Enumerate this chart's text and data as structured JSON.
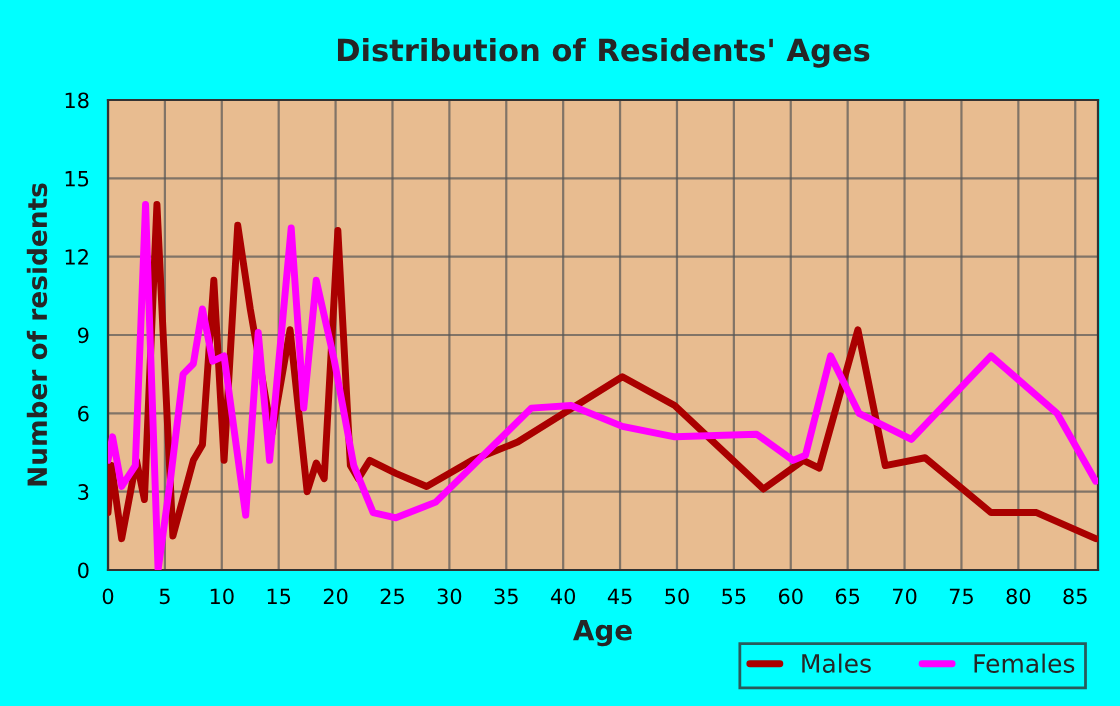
{
  "chart_data": {
    "type": "line",
    "title": "Distribution of Residents' Ages",
    "xlabel": "Age",
    "ylabel": "Number of residents",
    "xlim": [
      0,
      87
    ],
    "xticks": [
      0,
      5,
      10,
      15,
      20,
      25,
      30,
      35,
      40,
      45,
      50,
      55,
      60,
      65,
      70,
      75,
      80,
      85
    ],
    "ylim": [
      0,
      18
    ],
    "yticks": [
      0,
      3,
      6,
      9,
      12,
      15,
      18
    ],
    "grid": true,
    "legend": "bottom right",
    "line_style": "solid",
    "series": [
      {
        "name": "Males",
        "color": "#aa0000",
        "x": [
          0,
          0.3,
          1.2,
          2.5,
          3.2,
          4.3,
          5.7,
          7.5,
          8.3,
          9.3,
          10.2,
          11.4,
          12.5,
          14.4,
          16.0,
          17.5,
          18.3,
          19.0,
          20.2,
          21.3,
          22.0,
          23.0,
          25.3,
          28.0,
          32.0,
          36.0,
          45.2,
          49.8,
          57.6,
          61.1,
          62.5,
          65.9,
          68.3,
          71.8,
          77.6,
          81.6,
          86.8
        ],
        "values": [
          2.2,
          4.0,
          1.2,
          4.2,
          2.7,
          14.0,
          1.3,
          4.2,
          4.8,
          11.1,
          4.2,
          13.2,
          10.0,
          5.2,
          9.2,
          3.0,
          4.1,
          3.5,
          13.0,
          4.0,
          3.5,
          4.2,
          3.7,
          3.2,
          4.2,
          4.9,
          7.4,
          6.3,
          3.1,
          4.2,
          3.9,
          9.2,
          4.0,
          4.3,
          2.2,
          2.2,
          1.2
        ]
      },
      {
        "name": "Females",
        "color": "#ff00ff",
        "x": [
          0,
          0.4,
          1.2,
          2.4,
          3.3,
          4.4,
          5.5,
          6.6,
          7.5,
          8.3,
          9.2,
          10.2,
          12.1,
          13.2,
          14.2,
          16.1,
          17.2,
          18.3,
          19.9,
          21.6,
          23.3,
          25.3,
          28.8,
          37.2,
          40.7,
          45.2,
          49.8,
          57.0,
          60.2,
          61.3,
          63.5,
          66.0,
          70.6,
          77.6,
          83.4,
          86.8
        ],
        "values": [
          4.2,
          5.1,
          3.2,
          4.0,
          14.0,
          0,
          3.5,
          7.5,
          7.9,
          10.0,
          8.0,
          8.2,
          2.1,
          9.1,
          4.2,
          13.1,
          6.2,
          11.1,
          8.0,
          4.0,
          2.2,
          2.0,
          2.6,
          6.2,
          6.3,
          5.5,
          5.1,
          5.2,
          4.2,
          4.4,
          8.2,
          6.0,
          5.0,
          8.2,
          6.0,
          3.4
        ]
      }
    ]
  }
}
